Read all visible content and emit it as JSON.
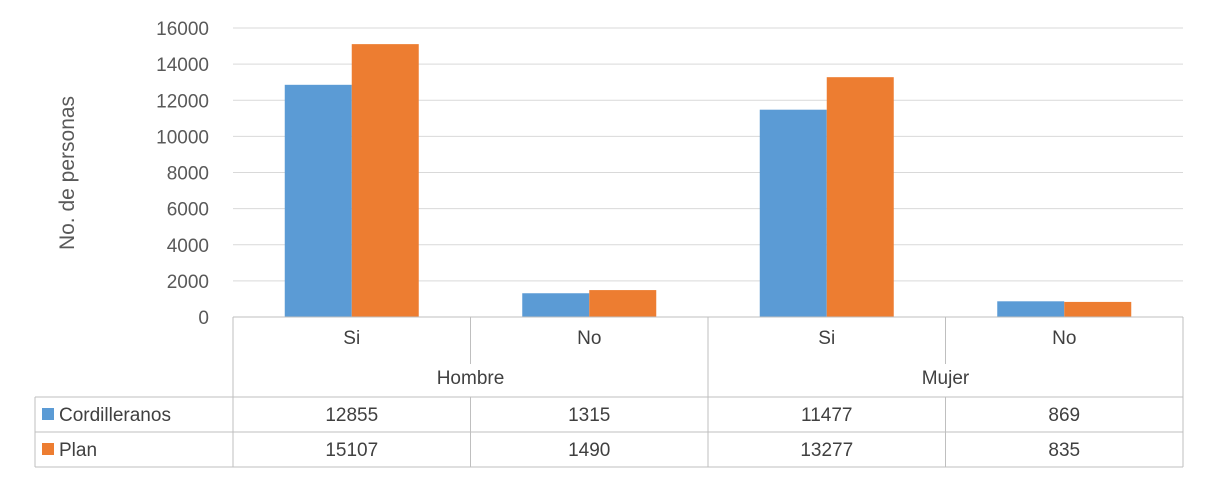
{
  "chart_data": {
    "type": "bar",
    "title": "",
    "xlabel": "",
    "ylabel": "No. de personas",
    "ylim": [
      0,
      16000
    ],
    "yticks": [
      0,
      2000,
      4000,
      6000,
      8000,
      10000,
      12000,
      14000,
      16000
    ],
    "ytick_labels": [
      "0",
      "2000",
      "4000",
      "6000",
      "8000",
      "10000",
      "12000",
      "14000",
      "16000"
    ],
    "grid": true,
    "legend": "data-table",
    "groups": [
      {
        "label": "Hombre",
        "categories": [
          "Si",
          "No"
        ]
      },
      {
        "label": "Mujer",
        "categories": [
          "Si",
          "No"
        ]
      }
    ],
    "categories": [
      "Si",
      "No",
      "Si",
      "No"
    ],
    "series": [
      {
        "name": "Cordilleranos",
        "color": "#5B9BD5",
        "values": [
          12855,
          1315,
          11477,
          869
        ],
        "value_labels": [
          "12855",
          "1315",
          "11477",
          "869"
        ]
      },
      {
        "name": "Plan",
        "color": "#ED7D31",
        "values": [
          15107,
          1490,
          13277,
          835
        ],
        "value_labels": [
          "15107",
          "1490",
          "13277",
          "835"
        ]
      }
    ]
  }
}
